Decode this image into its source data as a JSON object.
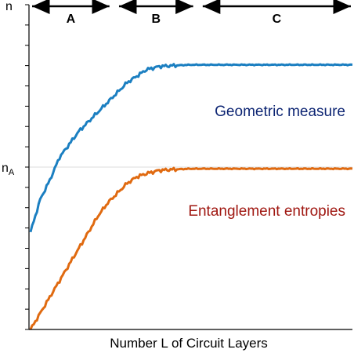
{
  "chart_data": {
    "type": "line",
    "xlabel": "Number L of Circuit Layers",
    "ylabel": "",
    "yticks": {
      "top": "n",
      "mid_base": "n",
      "mid_sub": "A"
    },
    "ylim": [
      0,
      1
    ],
    "ref_line": {
      "y": 0.5,
      "color": "#dddddd"
    },
    "regions": [
      {
        "label": "A",
        "from": 0.0,
        "to": 0.25
      },
      {
        "label": "B",
        "from": 0.27,
        "to": 0.51
      },
      {
        "label": "C",
        "from": 0.53,
        "to": 1.0
      }
    ],
    "series": [
      {
        "name": "Geometric measure",
        "color": "#1b7fc1",
        "label_color": "#0d2573",
        "x": [
          0,
          0.03,
          0.06,
          0.09,
          0.12,
          0.15,
          0.18,
          0.21,
          0.24,
          0.27,
          0.3,
          0.33,
          0.36,
          0.4,
          0.45,
          0.5,
          0.6,
          0.7,
          0.8,
          0.9,
          1.0
        ],
        "y": [
          0.3,
          0.4,
          0.46,
          0.53,
          0.57,
          0.61,
          0.64,
          0.67,
          0.7,
          0.73,
          0.76,
          0.78,
          0.8,
          0.81,
          0.813,
          0.815,
          0.815,
          0.815,
          0.815,
          0.815,
          0.815
        ]
      },
      {
        "name": "Entanglement entropies",
        "color": "#e06a10",
        "label_color": "#a01812",
        "x": [
          0,
          0.03,
          0.06,
          0.09,
          0.12,
          0.15,
          0.18,
          0.21,
          0.24,
          0.27,
          0.3,
          0.33,
          0.36,
          0.4,
          0.45,
          0.5,
          0.6,
          0.7,
          0.8,
          0.9,
          1.0
        ],
        "y": [
          0.0,
          0.05,
          0.1,
          0.15,
          0.2,
          0.25,
          0.3,
          0.35,
          0.39,
          0.42,
          0.45,
          0.47,
          0.48,
          0.49,
          0.493,
          0.495,
          0.495,
          0.495,
          0.495,
          0.495,
          0.495
        ]
      }
    ]
  }
}
